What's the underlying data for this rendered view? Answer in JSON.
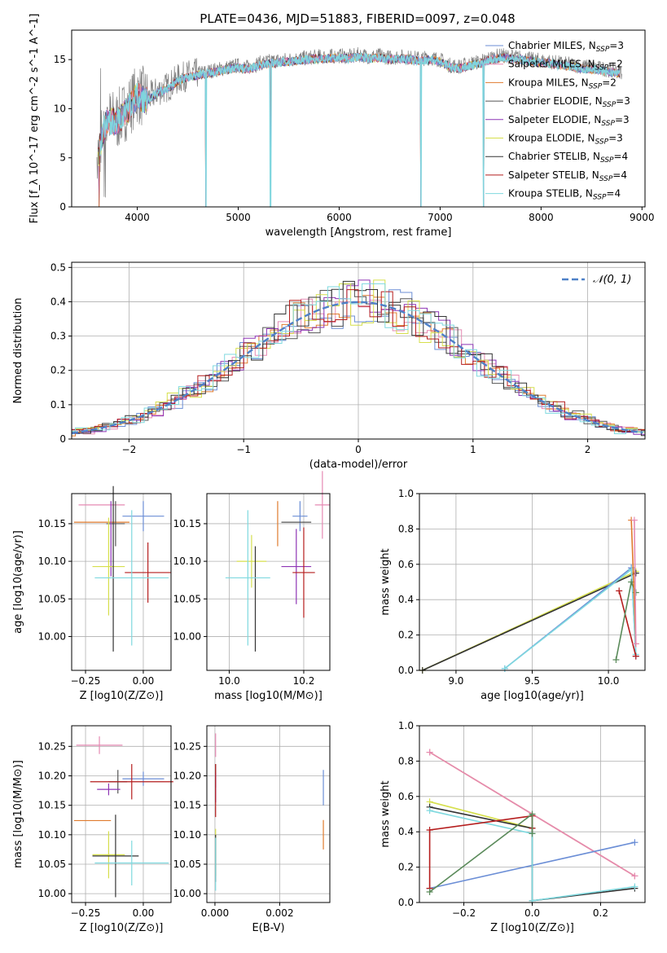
{
  "figure": {
    "title": "PLATE=0436, MJD=51883, FIBERID=0097, z=0.048"
  },
  "colors": {
    "Chabrier MILES": "#6b8ed6",
    "Salpeter MILES": "#e58ab3",
    "Kroupa MILES": "#e07b2e",
    "Chabrier ELODIE": "#555555",
    "Salpeter ELODIE": "#8e35b5",
    "Kroupa ELODIE": "#d6df4c",
    "Chabrier STELIB": "#333333",
    "Salpeter STELIB": "#b51d1d",
    "Kroupa STELIB": "#7fd9df",
    "model_teal": "#7fd9df",
    "data_gray": "#808080",
    "normal_curve": "#4f81c8",
    "grid": "#b0b0b0",
    "chabrier_elodie_line": "#5a8a5a"
  },
  "chart_data": [
    {
      "id": "spectrum",
      "type": "line",
      "xlabel": "wavelength [Angstrom, rest frame]",
      "ylabel": "Flux [f_λ 10^-17 erg cm^-2 s^-1 A^-1]",
      "xlim": [
        3350,
        9030
      ],
      "ylim": [
        0,
        18
      ],
      "xticks": [
        4000,
        5000,
        6000,
        7000,
        8000,
        9000
      ],
      "yticks": [
        0,
        5,
        10,
        15
      ],
      "grid": false,
      "legend_position": "right",
      "legend": [
        "Chabrier MILES, N_SSP=3",
        "Salpeter MILES, N_SSP=2",
        "Kroupa MILES, N_SSP=2",
        "Chabrier ELODIE, N_SSP=3",
        "Salpeter ELODIE, N_SSP=3",
        "Kroupa ELODIE, N_SSP=3",
        "Chabrier STELIB, N_SSP=4",
        "Salpeter STELIB, N_SSP=4",
        "Kroupa STELIB, N_SSP=4"
      ],
      "continuum": {
        "x": [
          3600,
          3650,
          3700,
          3800,
          3900,
          4000,
          4100,
          4200,
          4300,
          4400,
          4500,
          4600,
          4700,
          4800,
          4900,
          5000,
          5100,
          5200,
          5300,
          5400,
          5500,
          5600,
          5700,
          5800,
          5900,
          6000,
          6100,
          6200,
          6300,
          6400,
          6500,
          6600,
          6700,
          6800,
          6900,
          7000,
          7100,
          7200,
          7300,
          7400,
          7500,
          7600,
          7700,
          7800,
          7900,
          8000,
          8100,
          8200,
          8300,
          8400,
          8500,
          8600,
          8700,
          8800
        ],
        "y": [
          4.5,
          7.5,
          9.0,
          8.8,
          10.0,
          11.5,
          11.0,
          11.8,
          12.2,
          13.0,
          13.4,
          13.6,
          13.8,
          14.0,
          14.2,
          14.4,
          14.2,
          14.6,
          14.8,
          14.9,
          15.0,
          15.1,
          15.2,
          15.3,
          15.3,
          15.4,
          15.3,
          15.5,
          15.3,
          15.4,
          15.2,
          15.3,
          15.2,
          15.1,
          15.2,
          15.0,
          14.4,
          14.3,
          14.6,
          14.8,
          15.2,
          15.4,
          15.3,
          15.2,
          15.0,
          14.9,
          14.8,
          14.6,
          14.5,
          14.3,
          14.2,
          14.1,
          13.9,
          13.8
        ]
      },
      "drops": [
        {
          "x": 3620,
          "y": 0
        },
        {
          "x": 4680,
          "y": 0
        },
        {
          "x": 5320,
          "y": 0
        },
        {
          "x": 6810,
          "y": 0
        },
        {
          "x": 7430,
          "y": 0
        }
      ]
    },
    {
      "id": "residuals",
      "type": "histogram",
      "xlabel": "(data-model)/error",
      "ylabel": "Normed distribution",
      "xlim": [
        -2.5,
        2.5
      ],
      "ylim": [
        0,
        0.515
      ],
      "xticks": [
        -2,
        -1,
        0,
        1,
        2
      ],
      "yticks": [
        0.0,
        0.1,
        0.2,
        0.3,
        0.4,
        0.5
      ],
      "grid": true,
      "legend_position": "top-right",
      "legend": [
        "𝒩(0, 1)"
      ],
      "bin_width": 0.1,
      "normal": {
        "mean": 0,
        "sigma": 1
      }
    },
    {
      "id": "age_Z",
      "type": "errorbar",
      "xlabel": "Z [log10(Z/Z⊙)]",
      "ylabel": "age  [log10(age/yr)]",
      "xlim": [
        -0.31,
        0.12
      ],
      "ylim": [
        9.955,
        10.19
      ],
      "xticks": [
        -0.25,
        0.0
      ],
      "xtick_labels": [
        "−0.25",
        "0.00"
      ],
      "yticks": [
        10.0,
        10.05,
        10.1,
        10.15
      ],
      "ytick_labels": [
        "10.00",
        "10.05",
        "10.10",
        "10.15"
      ],
      "grid": true,
      "points": [
        {
          "model": "Chabrier MILES",
          "x": 0.0,
          "xerr": 0.09,
          "y": 10.16,
          "yerr": 0.02
        },
        {
          "model": "Salpeter MILES",
          "x": -0.18,
          "xerr": 0.1,
          "y": 10.175,
          "yerr": 0.0
        },
        {
          "model": "Kroupa MILES",
          "x": -0.18,
          "xerr": 0.12,
          "y": 10.152,
          "yerr": 0.0
        },
        {
          "model": "Chabrier ELODIE",
          "x": -0.12,
          "xerr": 0.04,
          "y": 10.15,
          "yerr": 0.03
        },
        {
          "model": "Salpeter ELODIE",
          "x": -0.14,
          "xerr": 0.0,
          "y": 10.13,
          "yerr": 0.05
        },
        {
          "model": "Kroupa ELODIE",
          "x": -0.15,
          "xerr": 0.07,
          "y": 10.093,
          "yerr": 0.065
        },
        {
          "model": "Chabrier STELIB",
          "x": -0.13,
          "xerr": 0.0,
          "y": 10.09,
          "yerr": 0.11
        },
        {
          "model": "Salpeter STELIB",
          "x": 0.02,
          "xerr": 0.1,
          "y": 10.085,
          "yerr": 0.04
        },
        {
          "model": "Kroupa STELIB",
          "x": -0.05,
          "xerr": 0.16,
          "y": 10.078,
          "yerr": 0.09
        }
      ]
    },
    {
      "id": "age_mass",
      "type": "errorbar",
      "xlabel": "mass [log10(M/M⊙)]",
      "ylabel": "",
      "xlim": [
        9.94,
        10.27
      ],
      "ylim": [
        9.955,
        10.19
      ],
      "xticks": [
        10.0,
        10.2
      ],
      "xtick_labels": [
        "10.0",
        "10.2"
      ],
      "yticks": [
        10.0,
        10.05,
        10.1,
        10.15
      ],
      "ytick_labels": [
        "10.00",
        "10.05",
        "10.10",
        "10.15"
      ],
      "grid": true,
      "points": [
        {
          "model": "Chabrier MILES",
          "x": 10.19,
          "xerr": 0.02,
          "y": 10.16,
          "yerr": 0.02
        },
        {
          "model": "Salpeter MILES",
          "x": 10.25,
          "xerr": 0.02,
          "y": 10.175,
          "yerr": 0.045
        },
        {
          "model": "Kroupa MILES",
          "x": 10.13,
          "xerr": 0.0,
          "y": 10.15,
          "yerr": 0.03
        },
        {
          "model": "Chabrier ELODIE",
          "x": 10.18,
          "xerr": 0.04,
          "y": 10.152,
          "yerr": 0.0
        },
        {
          "model": "Salpeter ELODIE",
          "x": 10.18,
          "xerr": 0.04,
          "y": 10.093,
          "yerr": 0.05
        },
        {
          "model": "Kroupa ELODIE",
          "x": 10.06,
          "xerr": 0.04,
          "y": 10.1,
          "yerr": 0.035
        },
        {
          "model": "Chabrier STELIB",
          "x": 10.07,
          "xerr": 0.0,
          "y": 10.05,
          "yerr": 0.07
        },
        {
          "model": "Salpeter STELIB",
          "x": 10.2,
          "xerr": 0.03,
          "y": 10.085,
          "yerr": 0.06
        },
        {
          "model": "Kroupa STELIB",
          "x": 10.05,
          "xerr": 0.06,
          "y": 10.078,
          "yerr": 0.09
        }
      ]
    },
    {
      "id": "mass_weight_age",
      "type": "line",
      "xlabel": "age  [log10(age/yr)]",
      "ylabel": "mass weight",
      "xlim": [
        8.76,
        10.24
      ],
      "ylim": [
        0,
        1.0
      ],
      "xticks": [
        9.0,
        9.5,
        10.0
      ],
      "xtick_labels": [
        "9.0",
        "9.5",
        "10.0"
      ],
      "yticks": [
        0.0,
        0.2,
        0.4,
        0.6,
        0.8,
        1.0
      ],
      "ytick_labels": [
        "0.0",
        "0.2",
        "0.4",
        "0.6",
        "0.8",
        "1.0"
      ],
      "grid": true,
      "series": [
        {
          "model": "Kroupa ELODIE",
          "x": [
            8.78,
            10.18
          ],
          "y": [
            0.0,
            0.56
          ]
        },
        {
          "model": "Chabrier STELIB",
          "x": [
            8.78,
            10.18
          ],
          "y": [
            0.0,
            0.55
          ]
        },
        {
          "model": "Chabrier MILES",
          "x": [
            9.32,
            10.15,
            10.18
          ],
          "y": [
            0.01,
            0.58,
            0.08
          ]
        },
        {
          "model": "Kroupa STELIB",
          "x": [
            9.32,
            10.15,
            10.18
          ],
          "y": [
            0.01,
            0.57,
            0.09
          ]
        },
        {
          "model": "Salpeter STELIB",
          "x": [
            10.07,
            10.18
          ],
          "y": [
            0.45,
            0.08
          ]
        },
        {
          "model": "Chabrier ELODIE",
          "x": [
            10.05,
            10.15,
            10.18
          ],
          "y": [
            0.06,
            0.5,
            0.44
          ]
        },
        {
          "model": "Kroupa MILES",
          "x": [
            10.15,
            10.18
          ],
          "y": [
            0.85,
            0.15
          ]
        },
        {
          "model": "Salpeter MILES",
          "x": [
            10.17,
            10.18
          ],
          "y": [
            0.85,
            0.15
          ]
        }
      ]
    },
    {
      "id": "mass_Z",
      "type": "errorbar",
      "xlabel": "Z [log10(Z/Z⊙)]",
      "ylabel": "mass [log10(M/M⊙)]",
      "xlim": [
        -0.31,
        0.12
      ],
      "ylim": [
        9.985,
        10.285
      ],
      "xticks": [
        -0.25,
        0.0
      ],
      "xtick_labels": [
        "−0.25",
        "0.00"
      ],
      "yticks": [
        10.0,
        10.05,
        10.1,
        10.15,
        10.2,
        10.25
      ],
      "ytick_labels": [
        "10.00",
        "10.05",
        "10.10",
        "10.15",
        "10.20",
        "10.25"
      ],
      "grid": true,
      "points": [
        {
          "model": "Chabrier MILES",
          "x": 0.0,
          "xerr": 0.09,
          "y": 10.195,
          "yerr": 0.012
        },
        {
          "model": "Salpeter MILES",
          "x": -0.19,
          "xerr": 0.1,
          "y": 10.252,
          "yerr": 0.015
        },
        {
          "model": "Kroupa MILES",
          "x": -0.22,
          "xerr": 0.08,
          "y": 10.124,
          "yerr": 0.0
        },
        {
          "model": "Chabrier ELODIE",
          "x": -0.11,
          "xerr": 0.04,
          "y": 10.19,
          "yerr": 0.02
        },
        {
          "model": "Salpeter ELODIE",
          "x": -0.15,
          "xerr": 0.05,
          "y": 10.177,
          "yerr": 0.01
        },
        {
          "model": "Kroupa ELODIE",
          "x": -0.15,
          "xerr": 0.07,
          "y": 10.066,
          "yerr": 0.04
        },
        {
          "model": "Chabrier STELIB",
          "x": -0.12,
          "xerr": 0.1,
          "y": 10.064,
          "yerr": 0.07
        },
        {
          "model": "Salpeter STELIB",
          "x": -0.05,
          "xerr": 0.18,
          "y": 10.19,
          "yerr": 0.03
        },
        {
          "model": "Kroupa STELIB",
          "x": -0.05,
          "xerr": 0.16,
          "y": 10.052,
          "yerr": 0.038
        }
      ]
    },
    {
      "id": "mass_ebv",
      "type": "errorbar",
      "xlabel": "E(B-V)",
      "ylabel": "",
      "xlim": [
        -0.00025,
        0.00355
      ],
      "ylim": [
        9.985,
        10.285
      ],
      "xticks": [
        0.0,
        0.002
      ],
      "xtick_labels": [
        "0.000",
        "0.002"
      ],
      "yticks": [
        10.0,
        10.05,
        10.1,
        10.15,
        10.2,
        10.25
      ],
      "ytick_labels": [
        "10.00",
        "10.05",
        "10.10",
        "10.15",
        "10.20",
        "10.25"
      ],
      "grid": true,
      "points": [
        {
          "model": "Chabrier MILES",
          "x": 0.00335,
          "xerr": 0.0,
          "y": 10.18,
          "yerr": 0.03
        },
        {
          "model": "Salpeter MILES",
          "x": 2e-05,
          "xerr": 0.0,
          "y": 10.252,
          "yerr": 0.02
        },
        {
          "model": "Kroupa MILES",
          "x": 0.00335,
          "xerr": 0.0,
          "y": 10.1,
          "yerr": 0.025
        },
        {
          "model": "Chabrier ELODIE",
          "x": 2e-05,
          "xerr": 0.0,
          "y": 10.2,
          "yerr": 0.02
        },
        {
          "model": "Salpeter ELODIE",
          "x": 2e-05,
          "xerr": 0.0,
          "y": 10.18,
          "yerr": 0.025
        },
        {
          "model": "Kroupa ELODIE",
          "x": 2e-05,
          "xerr": 0.0,
          "y": 10.07,
          "yerr": 0.04
        },
        {
          "model": "Chabrier STELIB",
          "x": 2e-05,
          "xerr": 0.0,
          "y": 10.06,
          "yerr": 0.04
        },
        {
          "model": "Salpeter STELIB",
          "x": 2e-05,
          "xerr": 0.0,
          "y": 10.175,
          "yerr": 0.045
        },
        {
          "model": "Kroupa STELIB",
          "x": 2e-05,
          "xerr": 0.0,
          "y": 10.05,
          "yerr": 0.045
        }
      ]
    },
    {
      "id": "mass_weight_Z",
      "type": "line",
      "xlabel": "Z [log10(Z/Z⊙)]",
      "ylabel": "mass weight",
      "xlim": [
        -0.33,
        0.33
      ],
      "ylim": [
        0,
        1.0
      ],
      "xticks": [
        -0.2,
        0.0,
        0.2
      ],
      "xtick_labels": [
        "−0.2",
        "0.0",
        "0.2"
      ],
      "yticks": [
        0.0,
        0.2,
        0.4,
        0.6,
        0.8,
        1.0
      ],
      "ytick_labels": [
        "0.0",
        "0.2",
        "0.4",
        "0.6",
        "0.8",
        "1.0"
      ],
      "grid": true,
      "series": [
        {
          "model": "Kroupa MILES",
          "x": [
            -0.3,
            0.3
          ],
          "y": [
            0.85,
            0.15
          ]
        },
        {
          "model": "Salpeter MILES",
          "x": [
            -0.3,
            0.3
          ],
          "y": [
            0.85,
            0.15
          ]
        },
        {
          "model": "Chabrier MILES",
          "x": [
            -0.3,
            0.3
          ],
          "y": [
            0.08,
            0.34
          ]
        },
        {
          "model": "Kroupa ELODIE",
          "x": [
            -0.3,
            0.0
          ],
          "y": [
            0.57,
            0.42
          ]
        },
        {
          "model": "Chabrier STELIB",
          "x": [
            -0.3,
            0.0,
            0.0,
            0.3
          ],
          "y": [
            0.54,
            0.42,
            0.01,
            0.08
          ]
        },
        {
          "model": "Kroupa STELIB",
          "x": [
            -0.3,
            0.0,
            0.0,
            0.3
          ],
          "y": [
            0.52,
            0.39,
            0.01,
            0.09
          ]
        },
        {
          "model": "Salpeter STELIB",
          "x": [
            -0.3,
            -0.3,
            0.0,
            0.0
          ],
          "y": [
            0.08,
            0.41,
            0.49,
            0.42
          ]
        },
        {
          "model": "Chabrier ELODIE",
          "x": [
            -0.3,
            0.0,
            0.0
          ],
          "y": [
            0.06,
            0.5,
            0.39
          ]
        }
      ]
    }
  ]
}
